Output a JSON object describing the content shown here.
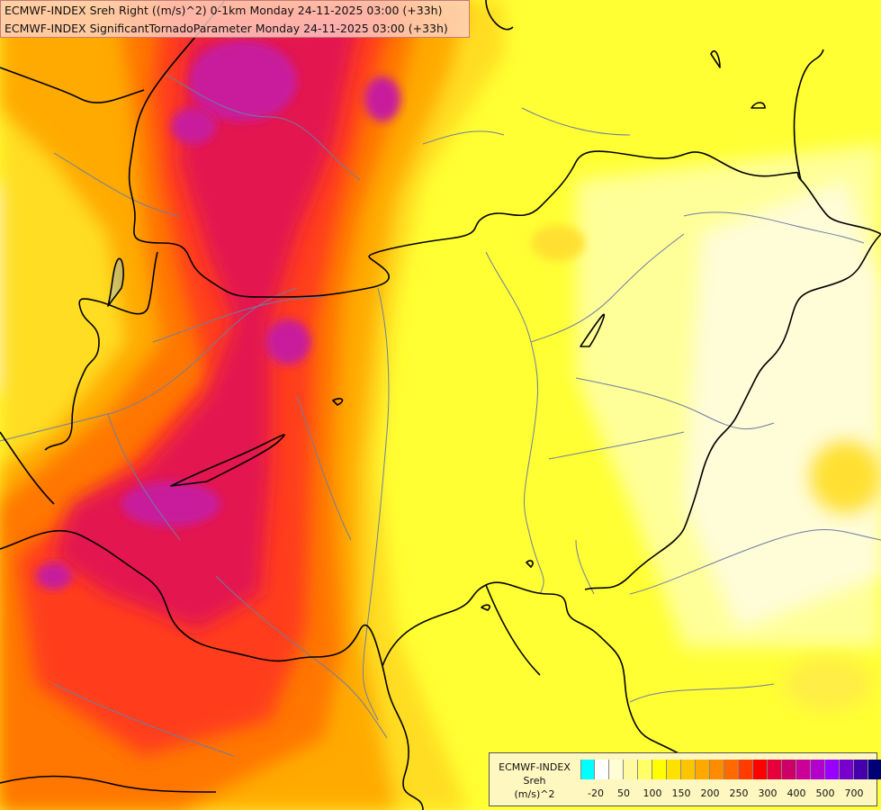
{
  "header": {
    "line1": "ECMWF-INDEX Sreh Right ((m/s)^2) 0-1km Monday 24-11-2025 03:00 (+33h)",
    "line2": "ECMWF-INDEX SignificantTornadoParameter Monday 24-11-2025 03:00 (+33h)"
  },
  "legend": {
    "title1": "ECMWF-INDEX",
    "title2": "Sreh",
    "title3": "(m/s)^2",
    "swatch_colors": [
      "#00ffff",
      "#ffffff",
      "#fffdd6",
      "#fff9a0",
      "#ffff66",
      "#ffff00",
      "#ffe100",
      "#ffc400",
      "#ffa800",
      "#ff8c00",
      "#ff6a00",
      "#ff3c00",
      "#ff0000",
      "#e6003c",
      "#cc0066",
      "#cc0099",
      "#b400cc",
      "#9900ff",
      "#7700cc",
      "#4400aa",
      "#000077"
    ],
    "tick_labels": [
      "-20",
      "50",
      "100",
      "150",
      "200",
      "250",
      "300",
      "400",
      "500",
      "700"
    ]
  },
  "map": {
    "colors": {
      "bg_yellow": "#ffff33",
      "pale_yellow": "#ffffb0",
      "cream": "#fffde0",
      "light_orange": "#ffdd22",
      "orange": "#ffaa00",
      "dark_orange": "#ff7700",
      "red_orange": "#ff4400",
      "red": "#ff1a1a",
      "crimson": "#e0145a",
      "magenta": "#c81a9c",
      "border": "#000000",
      "river": "#6e7ea0"
    }
  }
}
